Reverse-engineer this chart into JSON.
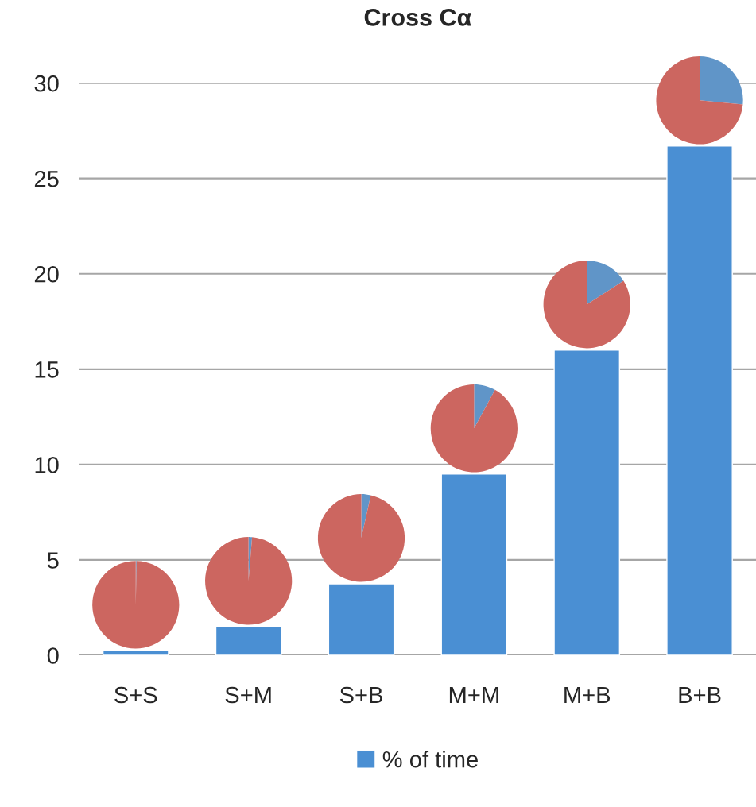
{
  "chart_data": [
    {
      "type": "bar",
      "title": "Cross Cα",
      "categories": [
        "S+S",
        "S+M",
        "S+B",
        "M+M",
        "M+B",
        "B+B"
      ],
      "series": [
        {
          "name": "% of time",
          "color": "#4a8fd3",
          "values": [
            0.25,
            1.5,
            3.75,
            9.5,
            16.0,
            26.7
          ]
        }
      ],
      "ylim": [
        0,
        30
      ],
      "yticks": [
        0,
        5,
        10,
        15,
        20,
        25,
        30
      ],
      "grid": "y",
      "legend": "bottom"
    },
    {
      "type": "pie",
      "categories": [
        null,
        null
      ],
      "values": [
        0.3,
        99.7
      ],
      "colors": [
        "#6095c8",
        "#cc6660"
      ]
    },
    {
      "type": "pie",
      "categories": [
        null,
        null
      ],
      "values": [
        1.3,
        98.7
      ],
      "colors": [
        "#6095c8",
        "#cc6660"
      ]
    },
    {
      "type": "pie",
      "categories": [
        null,
        null
      ],
      "values": [
        3.5,
        96.5
      ],
      "colors": [
        "#6095c8",
        "#cc6660"
      ]
    },
    {
      "type": "pie",
      "categories": [
        null,
        null
      ],
      "values": [
        8,
        92
      ],
      "colors": [
        "#6095c8",
        "#cc6660"
      ]
    },
    {
      "type": "pie",
      "categories": [
        null,
        null
      ],
      "values": [
        16,
        84
      ],
      "colors": [
        "#6095c8",
        "#cc6660"
      ]
    },
    {
      "type": "pie",
      "categories": [
        null,
        null
      ],
      "values": [
        26.5,
        73.5
      ],
      "colors": [
        "#6095c8",
        "#cc6660"
      ]
    }
  ]
}
